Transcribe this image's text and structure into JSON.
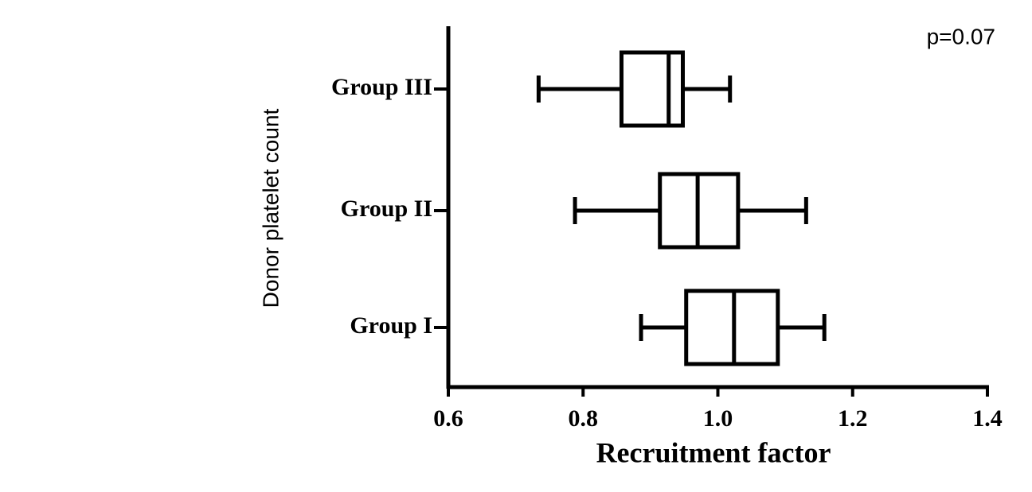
{
  "chart_data": {
    "type": "boxplot",
    "annotation": "p=0.07",
    "x_label": "Recruitment factor",
    "y_label": "Donor platelet count",
    "categories": [
      "Group III",
      "Group II",
      "Group I"
    ],
    "boxes": [
      {
        "min": 0.734,
        "q1": 0.857,
        "median": 0.927,
        "q3": 0.948,
        "max": 1.018
      },
      {
        "min": 0.788,
        "q1": 0.914,
        "median": 0.97,
        "q3": 1.03,
        "max": 1.131
      },
      {
        "min": 0.886,
        "q1": 0.953,
        "median": 1.024,
        "q3": 1.089,
        "max": 1.158
      }
    ],
    "color": "#000000",
    "xlim": [
      0.6,
      1.4
    ],
    "xticks": [
      0.6,
      0.8,
      {
        "value": 1,
        "label": "1.0"
      },
      1.2,
      1.4
    ]
  }
}
